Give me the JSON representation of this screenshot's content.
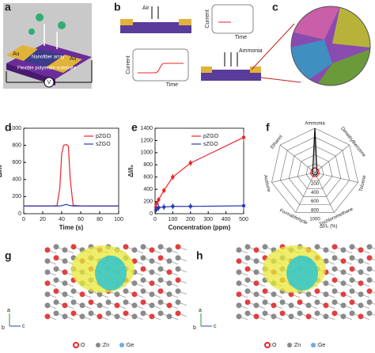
{
  "panels": [
    "a",
    "b",
    "c",
    "d",
    "e",
    "f",
    "g",
    "h"
  ],
  "a": {
    "electrode_left": "Au",
    "electrode_right": "Au",
    "array": "Nanofiber array",
    "substrate": "Flexible polyimide substrate",
    "meter": "V"
  },
  "b": {
    "gas1": "Air",
    "y1": "Current",
    "x1": "Time",
    "y2": "Current",
    "x2": "Time",
    "gas2": "Ammonia"
  },
  "g": {
    "axes": [
      "a",
      "b",
      "c"
    ],
    "legend": [
      ":O",
      ":Zn",
      ":Ge"
    ]
  },
  "h": {
    "axes": [
      "a",
      "b",
      "c"
    ],
    "legend": [
      ":O",
      ":Zn",
      ":Ge"
    ]
  },
  "chart_data": [
    {
      "type": "line",
      "xlabel": "Time (s)",
      "ylabel": "ΔI/I₀",
      "x": [
        0,
        10,
        20,
        30,
        35,
        38,
        40,
        42,
        45,
        47,
        49,
        52,
        55,
        60,
        70,
        80,
        90,
        100
      ],
      "series": [
        {
          "name": "pZGO",
          "color": "#e8262a",
          "values": [
            90,
            90,
            90,
            90,
            95,
            300,
            700,
            800,
            810,
            790,
            400,
            100,
            95,
            92,
            90,
            90,
            90,
            90
          ]
        },
        {
          "name": "sZGO",
          "color": "#2b3bb0",
          "values": [
            90,
            90,
            90,
            90,
            90,
            90,
            95,
            100,
            110,
            100,
            95,
            90,
            90,
            90,
            90,
            90,
            90,
            90
          ]
        }
      ],
      "xlim": [
        0,
        100
      ],
      "xticks": [
        0,
        20,
        40,
        60,
        80,
        100
      ],
      "ylim": [
        0,
        1000
      ],
      "yticks": [
        0,
        200,
        400,
        600,
        800,
        1000
      ],
      "legend": "upper right",
      "markers": false
    },
    {
      "type": "line",
      "xlabel": "Concentration (ppm)",
      "ylabel": "ΔI/I₀",
      "x": [
        5,
        10,
        20,
        50,
        100,
        200,
        500
      ],
      "series": [
        {
          "name": "pZGO",
          "color": "#e8262a",
          "values": [
            100,
            170,
            230,
            380,
            600,
            830,
            1250
          ],
          "errors": [
            30,
            40,
            40,
            40,
            50,
            50,
            80
          ]
        },
        {
          "name": "sZGO",
          "color": "#2b3bb0",
          "values": [
            60,
            80,
            100,
            110,
            120,
            120,
            130
          ],
          "errors": [
            40,
            40,
            50,
            50,
            50,
            50,
            60
          ]
        }
      ],
      "xlim": [
        0,
        500
      ],
      "xticks": [
        0,
        100,
        200,
        300,
        400,
        500
      ],
      "ylim": [
        0,
        1400
      ],
      "yticks": [
        0,
        200,
        400,
        600,
        800,
        1000,
        1200,
        1400
      ],
      "legend": "upper center",
      "markers": true
    },
    {
      "type": "radar",
      "categories": [
        "Ammonia",
        "Dimethylbenzene",
        "Toluene",
        "Trichloromethane",
        "Formaldehyde",
        "Acetone",
        "Ethanol"
      ],
      "rlim": [
        0,
        1000
      ],
      "rticks": [
        200,
        400,
        600,
        800,
        1000
      ],
      "rlabel": "ΔI/I₀ (%)",
      "series": [
        {
          "color": "#e8262a",
          "values": [
            110,
            100,
            100,
            100,
            100,
            100,
            100
          ]
        },
        {
          "color": "#111111",
          "values": [
            1000,
            60,
            60,
            60,
            60,
            60,
            60
          ]
        }
      ]
    }
  ]
}
